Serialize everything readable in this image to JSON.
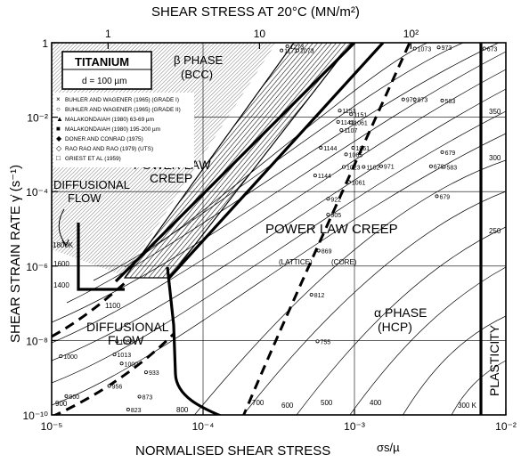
{
  "chart_data": {
    "type": "deformation-mechanism-map",
    "material": "TITANIUM",
    "grain_size": "d = 100 µm",
    "xlabel": "NORMALISED SHEAR STRESS",
    "xlabel_symbol": "σs/µ",
    "x2label": "SHEAR STRESS AT 20°C (MN/m²)",
    "ylabel": "SHEAR STRAIN RATE γ̇ (s⁻¹)",
    "x_scale": "log",
    "y_scale": "log",
    "xlim": [
      1e-05,
      0.01
    ],
    "ylim": [
      1e-10,
      1
    ],
    "x_ticks": [
      {
        "value": 1e-05,
        "label": "10⁻⁵"
      },
      {
        "value": 0.0001,
        "label": "10⁻⁴"
      },
      {
        "value": 0.001,
        "label": "10⁻³"
      },
      {
        "value": 0.01,
        "label": "10⁻²"
      }
    ],
    "x2_ticks": [
      {
        "value": 2.36e-05,
        "label": "1"
      },
      {
        "value": 0.000236,
        "label": "10"
      },
      {
        "value": 0.00236,
        "label": "10²"
      }
    ],
    "y_ticks": [
      {
        "value": 1,
        "label": "1"
      },
      {
        "value": 0.01,
        "label": "10⁻²"
      },
      {
        "value": 0.0001,
        "label": "10⁻⁴"
      },
      {
        "value": 1e-06,
        "label": "10⁻⁶"
      },
      {
        "value": 1e-08,
        "label": "10⁻⁸"
      },
      {
        "value": 1e-10,
        "label": "10⁻¹⁰"
      }
    ],
    "regions": [
      {
        "label": "β PHASE",
        "sublabel": "(BCC)"
      },
      {
        "label": "POWER LAW",
        "sublabel": "CREEP"
      },
      {
        "label": "DIFFUSIONAL",
        "sublabel": "FLOW"
      },
      {
        "label": "POWER LAW CREEP",
        "sublabel": ""
      },
      {
        "label": "DIFFUSIONAL",
        "sublabel": "FLOW"
      },
      {
        "label": "α PHASE",
        "sublabel": "(HCP)"
      },
      {
        "label": "PLASTICITY",
        "sublabel": ""
      }
    ],
    "annotations": [
      "(LATTICE)",
      "(CORE)"
    ],
    "legend": [
      {
        "marker": "×",
        "label": "BUHLER AND WAGENER (1965) (GRADE I)"
      },
      {
        "marker": "○",
        "label": "BUHLER AND WAGENER (1965) (GRADE II)"
      },
      {
        "marker": "▲",
        "label": "MALAKONDAIAH (1980) 63-69 µm"
      },
      {
        "marker": "■",
        "label": "MALAKONDAIAH (1980) 195-200 µm"
      },
      {
        "marker": "◆",
        "label": "DONER AND CONRAD (1975)"
      },
      {
        "marker": "◇",
        "label": "RAO RAO AND RAO (1979) (UTS)"
      },
      {
        "marker": "□",
        "label": "GRIEST ET AL (1959)"
      }
    ],
    "temperature_contours_K": [
      "1800K",
      "1600",
      "1400",
      "1100",
      "900",
      "800",
      "700",
      "600",
      "500",
      "400",
      "300 K",
      "250",
      "300",
      "350"
    ],
    "data_point_labels": [
      {
        "label": "1273",
        "x": 0.00036,
        "y": 0.8
      },
      {
        "label": "1173",
        "x": 0.00033,
        "y": 0.62
      },
      {
        "label": "1073",
        "x": 0.00042,
        "y": 0.62
      },
      {
        "label": "1073",
        "x": 0.0025,
        "y": 0.7
      },
      {
        "label": "973",
        "x": 0.0036,
        "y": 0.75
      },
      {
        "label": "673",
        "x": 0.0072,
        "y": 0.7
      },
      {
        "label": "971",
        "x": 0.0021,
        "y": 0.03
      },
      {
        "label": "873",
        "x": 0.0025,
        "y": 0.03
      },
      {
        "label": "583",
        "x": 0.0038,
        "y": 0.028
      },
      {
        "label": "1153",
        "x": 0.0008,
        "y": 0.015
      },
      {
        "label": "1151",
        "x": 0.00095,
        "y": 0.012
      },
      {
        "label": "1140",
        "x": 0.00078,
        "y": 0.0075
      },
      {
        "label": "1061",
        "x": 0.00095,
        "y": 0.0072
      },
      {
        "label": "1107",
        "x": 0.00082,
        "y": 0.0045
      },
      {
        "label": "1144",
        "x": 0.0006,
        "y": 0.0015
      },
      {
        "label": "1061",
        "x": 0.00098,
        "y": 0.0015
      },
      {
        "label": "1065",
        "x": 0.00088,
        "y": 0.001
      },
      {
        "label": "1023",
        "x": 0.00085,
        "y": 0.00046
      },
      {
        "label": "1102",
        "x": 0.00115,
        "y": 0.00046
      },
      {
        "label": "971",
        "x": 0.0015,
        "y": 0.00048
      },
      {
        "label": "1144",
        "x": 0.00055,
        "y": 0.00027
      },
      {
        "label": "1061",
        "x": 0.00092,
        "y": 0.00018
      },
      {
        "label": "679",
        "x": 0.0038,
        "y": 0.00115
      },
      {
        "label": "679",
        "x": 0.0032,
        "y": 0.00048
      },
      {
        "label": "583",
        "x": 0.0039,
        "y": 0.00046
      },
      {
        "label": "679",
        "x": 0.0035,
        "y": 7.5e-05
      },
      {
        "label": "922",
        "x": 0.00067,
        "y": 6.4e-05
      },
      {
        "label": "905",
        "x": 0.00067,
        "y": 2.4e-05
      },
      {
        "label": "869",
        "x": 0.00058,
        "y": 2.6e-06
      },
      {
        "label": "812",
        "x": 0.00052,
        "y": 1.7e-07
      },
      {
        "label": "755",
        "x": 0.00057,
        "y": 9.5e-09
      },
      {
        "label": "1058",
        "x": 2.7e-05,
        "y": 9.5e-09
      },
      {
        "label": "1013",
        "x": 2.6e-05,
        "y": 4.2e-09
      },
      {
        "label": "1000",
        "x": 1.15e-05,
        "y": 3.8e-09
      },
      {
        "label": "1000",
        "x": 2.9e-05,
        "y": 2.4e-09
      },
      {
        "label": "933",
        "x": 4.2e-05,
        "y": 1.4e-09
      },
      {
        "label": "956",
        "x": 2.4e-05,
        "y": 6e-10
      },
      {
        "label": "900",
        "x": 1.25e-05,
        "y": 3.2e-10
      },
      {
        "label": "873",
        "x": 3.8e-05,
        "y": 3.1e-10
      },
      {
        "label": "823",
        "x": 3.2e-05,
        "y": 1.4e-10
      }
    ]
  }
}
